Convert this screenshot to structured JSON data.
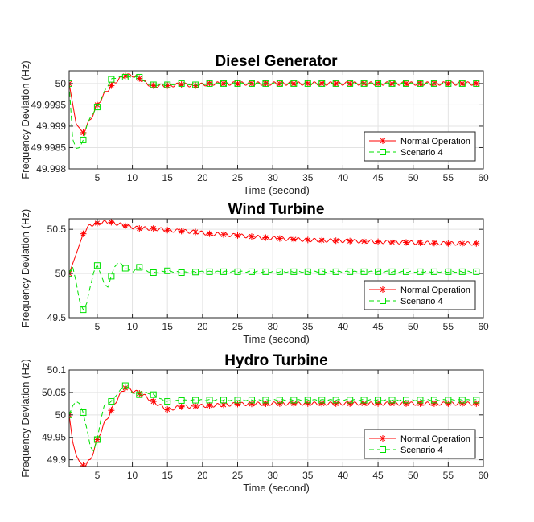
{
  "colors": {
    "normal": "#ff0000",
    "scenario": "#00e000",
    "grid": "#e3e3e3",
    "axis": "#262626"
  },
  "chart_data": [
    {
      "type": "line",
      "title": "Diesel Generator",
      "xlabel": "Time (second)",
      "ylabel": "Frequency Deviation (Hz)",
      "xlim": [
        1,
        60
      ],
      "ylim": [
        49.998,
        50.0003
      ],
      "xticks": [
        5,
        10,
        15,
        20,
        25,
        30,
        35,
        40,
        45,
        50,
        55,
        60
      ],
      "yticks": [
        49.998,
        49.9985,
        49.999,
        49.9995,
        50
      ],
      "ytick_labels": [
        "49.998",
        "49.9985",
        "49.999",
        "49.9995",
        "50"
      ],
      "legend": {
        "position": "bottom-right",
        "entries": [
          "Normal Operation",
          "Scenario 4"
        ]
      },
      "series": [
        {
          "name": "Normal Operation",
          "style": "solid",
          "marker": "asterisk",
          "x": [
            1,
            2,
            3,
            4,
            5,
            6,
            7,
            8,
            9,
            10,
            11,
            12,
            13,
            15,
            17,
            19,
            21,
            25,
            30,
            35,
            40,
            45,
            50,
            55,
            59
          ],
          "y": [
            50.0,
            49.99905,
            49.99885,
            49.99915,
            49.9995,
            49.99975,
            49.99995,
            50.0001,
            50.00018,
            50.0002,
            50.00012,
            50.0,
            49.99995,
            49.99995,
            49.99998,
            49.99995,
            50.0,
            50.0,
            50.0,
            50.0,
            50.0,
            50.0,
            50.0,
            50.0,
            50.0
          ],
          "marker_x": [
            1,
            3,
            5,
            7,
            9,
            11,
            13,
            15,
            17,
            19,
            21,
            23,
            25,
            27,
            29,
            31,
            33,
            35,
            37,
            39,
            41,
            43,
            45,
            47,
            49,
            51,
            53,
            55,
            57,
            59
          ]
        },
        {
          "name": "Scenario 4",
          "style": "dashed",
          "marker": "square",
          "x": [
            1,
            1.5,
            2,
            2.5,
            3,
            3.5,
            4,
            5,
            6,
            7,
            8,
            9,
            10,
            11,
            12,
            13,
            15,
            17,
            19,
            21,
            25,
            30,
            35,
            40,
            45,
            50,
            55,
            59
          ],
          "y": [
            50.0,
            49.9987,
            49.99848,
            49.9985,
            49.99868,
            49.999,
            49.9992,
            49.99945,
            49.9998,
            50.0001,
            50.00015,
            50.00015,
            50.00015,
            50.00015,
            50.0,
            49.99997,
            49.99997,
            50.0,
            49.99997,
            50.0,
            50.0,
            50.0,
            50.0,
            50.0,
            50.0,
            50.0,
            50.0,
            50.0
          ],
          "marker_x": [
            1,
            3,
            5,
            7,
            9,
            11,
            13,
            15,
            17,
            19,
            21,
            23,
            25,
            27,
            29,
            31,
            33,
            35,
            37,
            39,
            41,
            43,
            45,
            47,
            49,
            51,
            53,
            55,
            57,
            59
          ]
        }
      ]
    },
    {
      "type": "line",
      "title": "Wind Turbine",
      "xlabel": "Time (second)",
      "ylabel": "Frequency Deviation (Hz)",
      "xlim": [
        1,
        60
      ],
      "ylim": [
        49.5,
        50.62
      ],
      "xticks": [
        5,
        10,
        15,
        20,
        25,
        30,
        35,
        40,
        45,
        50,
        55,
        60
      ],
      "yticks": [
        49.5,
        50,
        50.5
      ],
      "ytick_labels": [
        "49.5",
        "50",
        "50.5"
      ],
      "legend": {
        "position": "bottom-right",
        "entries": [
          "Normal Operation",
          "Scenario 4"
        ]
      },
      "series": [
        {
          "name": "Normal Operation",
          "style": "solid",
          "marker": "asterisk",
          "x": [
            1,
            2,
            3,
            4,
            5,
            6,
            7,
            8,
            9,
            11,
            13,
            15,
            17,
            19,
            21,
            25,
            30,
            35,
            40,
            45,
            50,
            55,
            59
          ],
          "y": [
            50.0,
            50.22,
            50.45,
            50.55,
            50.57,
            50.58,
            50.58,
            50.56,
            50.54,
            50.51,
            50.51,
            50.49,
            50.48,
            50.47,
            50.45,
            50.43,
            50.4,
            50.38,
            50.37,
            50.36,
            50.35,
            50.34,
            50.34
          ],
          "marker_x": [
            1,
            3,
            5,
            7,
            9,
            11,
            13,
            15,
            17,
            19,
            21,
            23,
            25,
            27,
            29,
            31,
            33,
            35,
            37,
            39,
            41,
            43,
            45,
            47,
            49,
            51,
            53,
            55,
            57,
            59
          ]
        },
        {
          "name": "Scenario 4",
          "style": "dashed",
          "marker": "square",
          "x": [
            1,
            1.5,
            2,
            2.5,
            3,
            3.5,
            4,
            4.5,
            5,
            5.5,
            6,
            6.5,
            7,
            7.5,
            8,
            8.5,
            9,
            10,
            11,
            12,
            13,
            15,
            17,
            20,
            25,
            30,
            40,
            50,
            59
          ],
          "y": [
            50.0,
            50.08,
            49.9,
            49.68,
            49.59,
            49.66,
            49.85,
            50.02,
            50.09,
            50.0,
            49.88,
            49.85,
            49.97,
            50.08,
            50.13,
            50.1,
            50.06,
            50.02,
            50.07,
            50.03,
            50.01,
            50.03,
            50.01,
            50.02,
            50.02,
            50.02,
            50.02,
            50.02,
            50.02
          ],
          "marker_x": [
            1,
            3,
            5,
            7,
            9,
            11,
            13,
            15,
            17,
            19,
            21,
            23,
            25,
            27,
            29,
            31,
            33,
            35,
            37,
            39,
            41,
            43,
            45,
            47,
            49,
            51,
            53,
            55,
            57,
            59
          ]
        }
      ]
    },
    {
      "type": "line",
      "title": "Hydro Turbine",
      "xlabel": "Time (second)",
      "ylabel": "Frequency Deviation (Hz)",
      "xlim": [
        1,
        60
      ],
      "ylim": [
        49.885,
        50.1
      ],
      "xticks": [
        5,
        10,
        15,
        20,
        25,
        30,
        35,
        40,
        45,
        50,
        55,
        60
      ],
      "yticks": [
        49.9,
        49.95,
        50,
        50.05,
        50.1
      ],
      "ytick_labels": [
        "49.9",
        "49.95",
        "50",
        "50.05",
        "50.1"
      ],
      "legend": {
        "position": "bottom-right",
        "entries": [
          "Normal Operation",
          "Scenario 4"
        ]
      },
      "series": [
        {
          "name": "Normal Operation",
          "style": "solid",
          "marker": "asterisk",
          "x": [
            1,
            1.5,
            2,
            2.5,
            3,
            3.5,
            4,
            4.5,
            5,
            6,
            7,
            8,
            9,
            10,
            11,
            12,
            13,
            14,
            15,
            17,
            20,
            25,
            30,
            40,
            50,
            59
          ],
          "y": [
            50.0,
            49.94,
            49.91,
            49.895,
            49.887,
            49.89,
            49.9,
            49.92,
            49.945,
            49.98,
            50.01,
            50.04,
            50.06,
            50.055,
            50.048,
            50.04,
            50.03,
            50.02,
            50.012,
            50.018,
            50.02,
            50.024,
            50.025,
            50.025,
            50.025,
            50.025
          ],
          "marker_x": [
            1,
            3,
            5,
            7,
            9,
            11,
            13,
            15,
            17,
            19,
            21,
            23,
            25,
            27,
            29,
            31,
            33,
            35,
            37,
            39,
            41,
            43,
            45,
            47,
            49,
            51,
            53,
            55,
            57,
            59
          ]
        },
        {
          "name": "Scenario 4",
          "style": "dashed",
          "marker": "square",
          "x": [
            1,
            1.5,
            2,
            2.5,
            3,
            3.5,
            4,
            4.5,
            5,
            5.5,
            6,
            7,
            8,
            9,
            10,
            11,
            12,
            13,
            14,
            15,
            17,
            20,
            25,
            30,
            40,
            50,
            59
          ],
          "y": [
            50.0,
            50.02,
            50.03,
            50.025,
            50.005,
            49.97,
            49.93,
            49.92,
            49.945,
            49.99,
            50.02,
            50.03,
            50.05,
            50.065,
            50.05,
            50.045,
            50.05,
            50.045,
            50.035,
            50.03,
            50.032,
            50.033,
            50.033,
            50.033,
            50.033,
            50.033,
            50.033
          ],
          "marker_x": [
            1,
            3,
            5,
            7,
            9,
            11,
            13,
            15,
            17,
            19,
            21,
            23,
            25,
            27,
            29,
            31,
            33,
            35,
            37,
            39,
            41,
            43,
            45,
            47,
            49,
            51,
            53,
            55,
            57,
            59
          ]
        }
      ]
    }
  ]
}
